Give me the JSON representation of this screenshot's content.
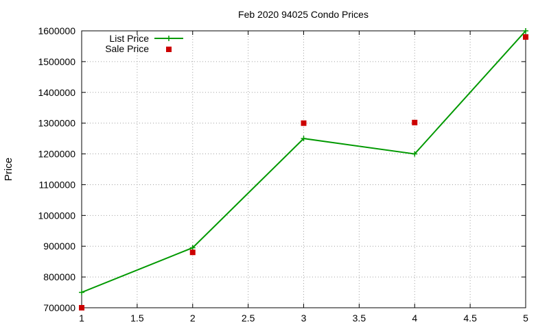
{
  "chart_data": {
    "type": "line",
    "title": "Feb 2020 94025 Condo Prices",
    "xlabel": "",
    "ylabel": "Price",
    "xlim": [
      1,
      5
    ],
    "ylim": [
      700000,
      1600000
    ],
    "xticks": [
      1,
      1.5,
      2,
      2.5,
      3,
      3.5,
      4,
      4.5,
      5
    ],
    "xtick_labels": [
      "1",
      "1.5",
      "2",
      "2.5",
      "3",
      "3.5",
      "4",
      "4.5",
      "5"
    ],
    "yticks": [
      700000,
      800000,
      900000,
      1000000,
      1100000,
      1200000,
      1300000,
      1400000,
      1500000,
      1600000
    ],
    "ytick_labels": [
      "700000",
      "800000",
      "900000",
      "1000000",
      "1100000",
      "1200000",
      "1300000",
      "1400000",
      "1500000",
      "1600000"
    ],
    "grid": true,
    "legend_position": "top-left",
    "series": [
      {
        "name": "List Price",
        "style": "line-with-plus-markers",
        "color": "#009900",
        "x": [
          1,
          2,
          3,
          4,
          5
        ],
        "y": [
          750000,
          895000,
          1250000,
          1200000,
          1600000
        ]
      },
      {
        "name": "Sale Price",
        "style": "square-markers",
        "color": "#cc0000",
        "x": [
          1,
          2,
          3,
          4,
          5
        ],
        "y": [
          700000,
          880000,
          1300000,
          1302000,
          1580000
        ]
      }
    ]
  }
}
